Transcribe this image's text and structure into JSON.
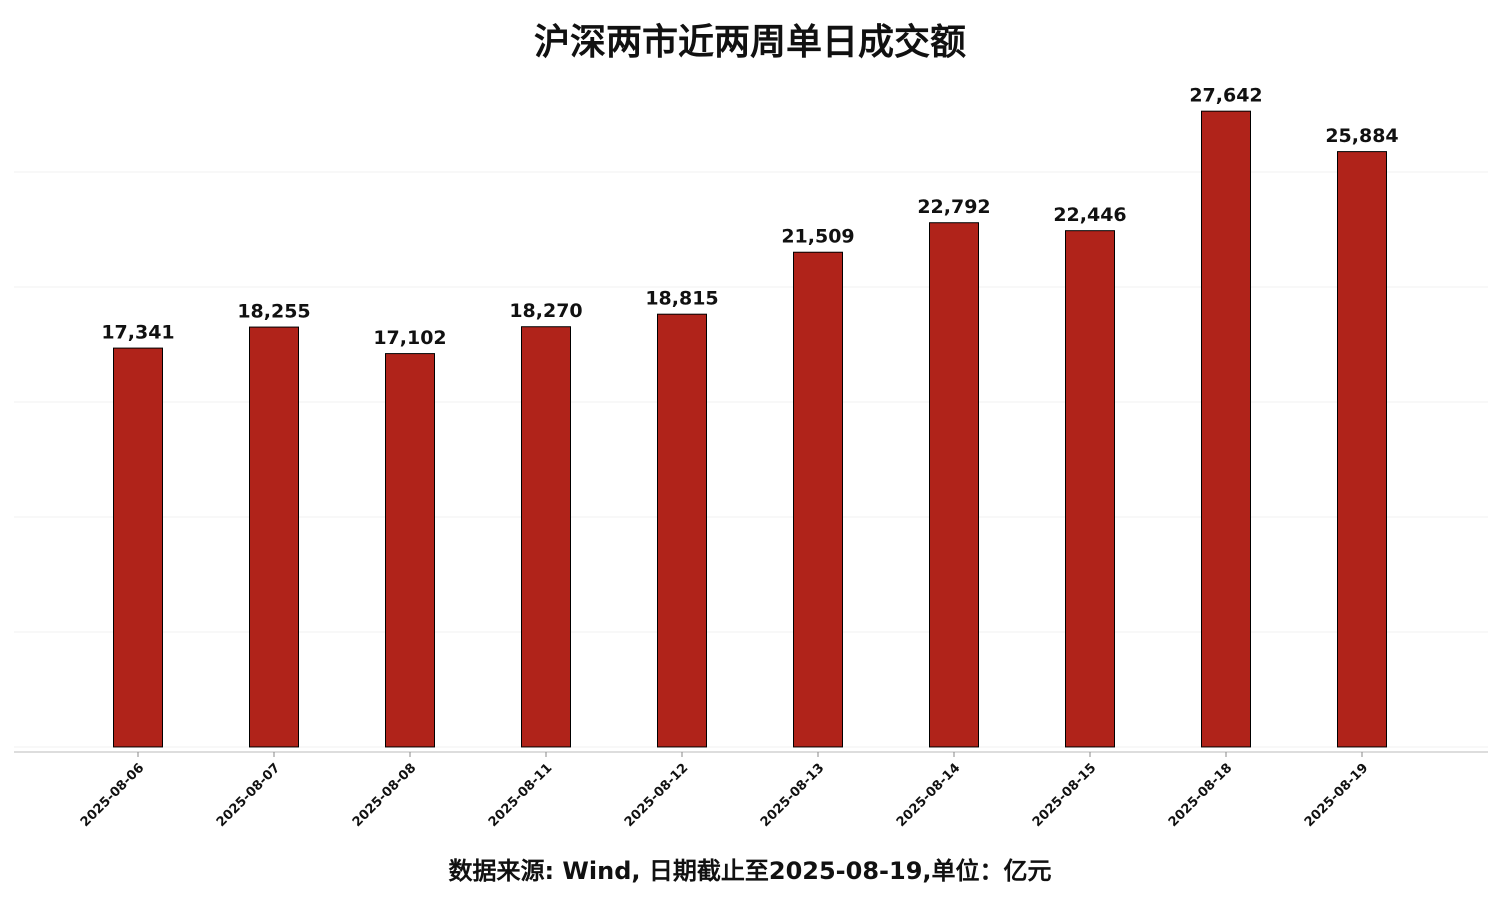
{
  "chart_data": {
    "type": "bar",
    "title": "沪深两市近两周单日成交额",
    "categories": [
      "2025-08-06",
      "2025-08-07",
      "2025-08-08",
      "2025-08-11",
      "2025-08-12",
      "2025-08-13",
      "2025-08-14",
      "2025-08-15",
      "2025-08-18",
      "2025-08-19"
    ],
    "values": [
      17341,
      18255,
      17102,
      18270,
      18815,
      21509,
      22792,
      22446,
      27642,
      25884
    ],
    "value_labels": [
      "17,341",
      "18,255",
      "17,102",
      "18,270",
      "18,815",
      "21,509",
      "22,792",
      "22,446",
      "27,642",
      "25,884"
    ],
    "color": "#b0231a",
    "ylim": [
      -220,
      28780
    ],
    "yticks": [
      0,
      5000,
      10000,
      15000,
      20000,
      25000
    ],
    "grid": true,
    "source": "数据来源: Wind, 日期截止至2025-08-19,单位：亿元"
  }
}
